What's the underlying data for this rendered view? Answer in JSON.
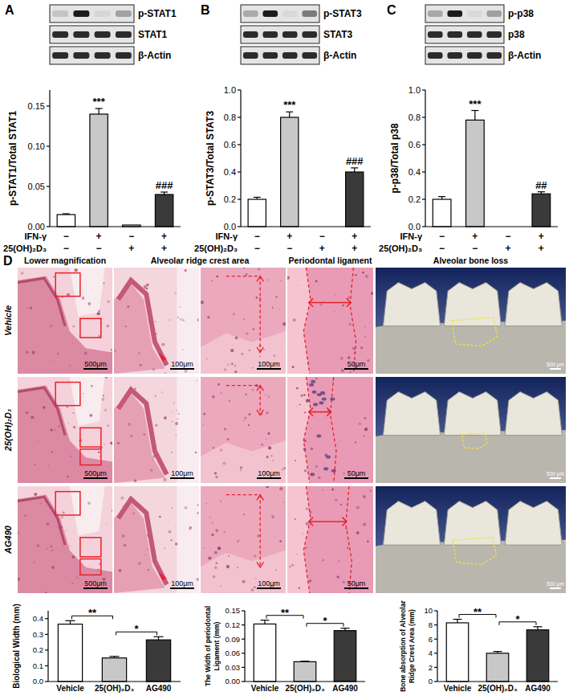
{
  "chart_data": [
    {
      "type": "bar",
      "categories": [
        null,
        null,
        null,
        null
      ],
      "values": [
        0.015,
        0.14,
        0.002,
        0.04
      ],
      "errors": [
        0.001,
        0.007,
        0,
        0.003
      ],
      "colors": [
        "#ffffff",
        "#c8c8c8",
        "#ffffff",
        "#3a3a3a"
      ],
      "ylim": [
        0,
        0.17
      ],
      "yticks": [
        {
          "value": 0,
          "label": "0.00"
        },
        {
          "value": 0.05,
          "label": "0.05"
        },
        {
          "value": 0.1,
          "label": "0.10"
        },
        {
          "value": 0.15,
          "label": "0.15"
        }
      ],
      "y_label": "p-STAT1/Total STAT1",
      "significance": [
        null,
        "***",
        null,
        "###"
      ],
      "treatments": [
        {
          "name": "IFN-γ",
          "signs": [
            "−",
            "+",
            "−",
            "+"
          ]
        },
        {
          "name": "25(OH)₂D₃",
          "signs": [
            "−",
            "−",
            "+",
            "+"
          ]
        }
      ]
    },
    {
      "type": "bar",
      "categories": [
        null,
        null,
        null,
        null
      ],
      "values": [
        0.2,
        0.8,
        0,
        0.4
      ],
      "errors": [
        0.015,
        0.04,
        0,
        0.03
      ],
      "colors": [
        "#ffffff",
        "#c8c8c8",
        "#ffffff",
        "#3a3a3a"
      ],
      "ylim": [
        0,
        1
      ],
      "yticks": [
        {
          "value": 0,
          "label": "0.0"
        },
        {
          "value": 0.2,
          "label": "0.2"
        },
        {
          "value": 0.4,
          "label": "0.4"
        },
        {
          "value": 0.6,
          "label": "0.6"
        },
        {
          "value": 0.8,
          "label": "0.8"
        },
        {
          "value": 1,
          "label": "1.0"
        }
      ],
      "y_label": "p-STAT3/Total STAT3",
      "significance": [
        null,
        "***",
        null,
        "###"
      ],
      "treatments": [
        {
          "name": "IFN-γ",
          "signs": [
            "−",
            "+",
            "−",
            "+"
          ]
        },
        {
          "name": "25(OH)₂D₃",
          "signs": [
            "−",
            "−",
            "+",
            "+"
          ]
        }
      ]
    },
    {
      "type": "bar",
      "categories": [
        null,
        null,
        null,
        null
      ],
      "values": [
        0.2,
        0.78,
        0,
        0.24
      ],
      "errors": [
        0.02,
        0.07,
        0,
        0.015
      ],
      "colors": [
        "#ffffff",
        "#c8c8c8",
        "#ffffff",
        "#3a3a3a"
      ],
      "ylim": [
        0,
        1
      ],
      "yticks": [
        {
          "value": 0,
          "label": "0.0"
        },
        {
          "value": 0.2,
          "label": "0.2"
        },
        {
          "value": 0.4,
          "label": "0.4"
        },
        {
          "value": 0.6,
          "label": "0.6"
        },
        {
          "value": 0.8,
          "label": "0.8"
        },
        {
          "value": 1,
          "label": "1.0"
        }
      ],
      "y_label": "p-p38/Total p38",
      "significance": [
        null,
        "***",
        null,
        "##"
      ],
      "treatments": [
        {
          "name": "IFN-γ",
          "signs": [
            "−",
            "+",
            "−",
            "+"
          ]
        },
        {
          "name": "25(OH)₂D₃",
          "signs": [
            "−",
            "−",
            "+",
            "+"
          ]
        }
      ]
    },
    {
      "type": "bar",
      "categories": [
        "Vehicle",
        "25(OH)₂D₃",
        "AG490"
      ],
      "values": [
        0.365,
        0.15,
        0.265
      ],
      "errors": [
        0.022,
        0.01,
        0.02
      ],
      "colors": [
        "#ffffff",
        "#c8c8c8",
        "#3a3a3a"
      ],
      "ylim": [
        0,
        0.45
      ],
      "yticks": [
        {
          "value": 0,
          "label": "0.0"
        },
        0.1,
        0.2,
        0.3,
        0.4
      ],
      "y_label": "Biological Width (mm)",
      "comparisons": [
        {
          "from": "Vehicle",
          "to": "25(OH)₂D₃",
          "text": "**"
        },
        {
          "from": "25(OH)₂D₃",
          "to": "AG490",
          "text": "*"
        }
      ]
    },
    {
      "type": "bar",
      "categories": [
        "Vehicle",
        "25(OH)₂D₃",
        "AG490"
      ],
      "values": [
        0.122,
        0.042,
        0.108
      ],
      "errors": [
        0.008,
        0.001,
        0.005
      ],
      "colors": [
        "#ffffff",
        "#c8c8c8",
        "#3a3a3a"
      ],
      "ylim": [
        0,
        0.15
      ],
      "yticks": [
        {
          "value": 0,
          "label": "0.00"
        },
        0.03,
        0.06,
        0.09,
        0.12,
        0.15
      ],
      "y_label": "The Width of periodontal\nLigament (mm)",
      "comparisons": [
        {
          "from": "Vehicle",
          "to": "25(OH)₂D₃",
          "text": "**"
        },
        {
          "from": "25(OH)₂D₃",
          "to": "AG490",
          "text": "*"
        }
      ]
    },
    {
      "type": "bar",
      "categories": [
        "Vehicle",
        "25(OH)₂D₃",
        "AG490"
      ],
      "values": [
        8.3,
        4.0,
        7.3
      ],
      "errors": [
        0.5,
        0.25,
        0.45
      ],
      "colors": [
        "#ffffff",
        "#c8c8c8",
        "#3a3a3a"
      ],
      "ylim": [
        0,
        10
      ],
      "yticks": [
        0,
        2,
        4,
        6,
        8,
        10
      ],
      "y_label": "Bone absorption of Alveolar\nRidge Crest Area (mm)",
      "comparisons": [
        {
          "from": "Vehicle",
          "to": "25(OH)₂D₃",
          "text": "**"
        },
        {
          "from": "25(OH)₂D₃",
          "to": "AG490",
          "text": "*"
        }
      ]
    }
  ],
  "blots": [
    {
      "label": "A",
      "rows": [
        "p-STAT1",
        "STAT1",
        "β-Actin"
      ]
    },
    {
      "label": "B",
      "rows": [
        "p-STAT3",
        "STAT3",
        "β-Actin"
      ]
    },
    {
      "label": "C",
      "rows": [
        "p-p38",
        "p38",
        "β-Actin"
      ]
    }
  ],
  "histology": {
    "label": "D",
    "columns": [
      "Lower magnification",
      "Alveolar ridge crest area",
      "Periodontal ligament",
      "Alveolar bone loss"
    ],
    "rows": [
      {
        "name": "Vehicle",
        "scale_bars": [
          "500μm",
          "100μm",
          "100μm",
          "50μm",
          "500 μm"
        ]
      },
      {
        "name": "25(OH)₂D₃",
        "scale_bars": [
          "500μm",
          "100μm",
          "100μm",
          "50μm",
          "500 μm"
        ]
      },
      {
        "name": "AG490",
        "scale_bars": [
          "500μm",
          "100μm",
          "100μm",
          "50μm",
          "500 μm"
        ]
      }
    ]
  }
}
